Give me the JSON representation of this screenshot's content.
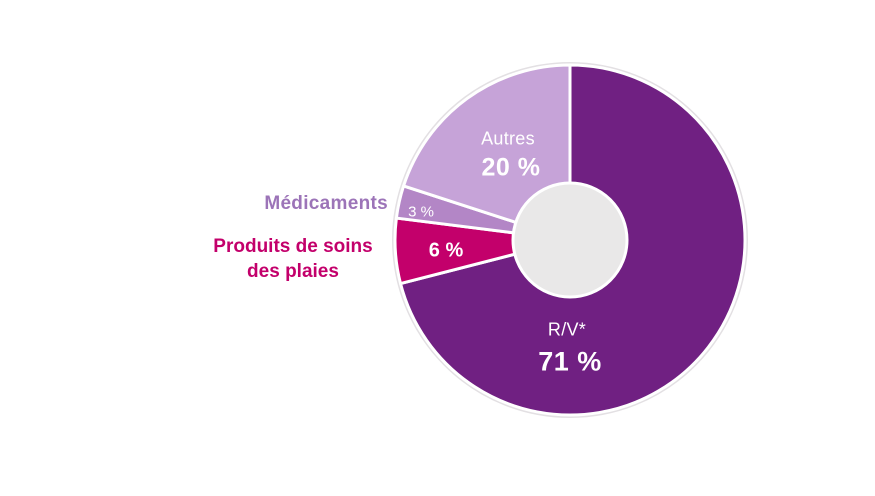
{
  "chart_data": {
    "type": "pie",
    "donut": true,
    "start_angle_deg": -90,
    "direction": "clockwise",
    "hole_color": "#e9e8e8",
    "outline_color": "#e3e0e3",
    "slices": [
      {
        "id": "rv",
        "label": "R/V*",
        "value": 71,
        "display": "71 %",
        "color": "#702082"
      },
      {
        "id": "plaies",
        "label": "Produits de soins des plaies",
        "value": 6,
        "display": "6 %",
        "color": "#c3006b"
      },
      {
        "id": "medicaments",
        "label": "Médicaments",
        "value": 3,
        "display": "3 %",
        "color": "#b386c6"
      },
      {
        "id": "autres",
        "label": "Autres",
        "value": 20,
        "display": "20 %",
        "color": "#c6a3d8"
      }
    ],
    "legend_position": "labels-on-chart",
    "title": ""
  },
  "labels": {
    "autres_name": "Autres",
    "autres_value": "20 %",
    "medicaments_name": "Médicaments",
    "medicaments_value": "3 %",
    "plaies_name_line1": "Produits de soins",
    "plaies_name_line2": "des plaies",
    "plaies_value": "6 %",
    "rv_name": "R/V*",
    "rv_value": "71 %"
  },
  "colors": {
    "medicaments_label_text": "#9c74b8",
    "plaies_label_text": "#c3006b",
    "on_slice_text": "#ffffff",
    "background": "#ffffff"
  }
}
